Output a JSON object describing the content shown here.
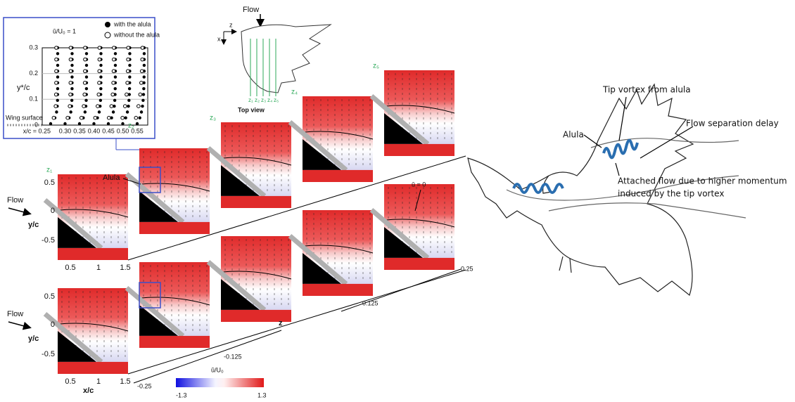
{
  "inset": {
    "scale_label": "ū/U₀ = 1",
    "legend": [
      "with the alula",
      "without the alula"
    ],
    "y_label": "y*/c",
    "yticks": [
      "0",
      "0.1",
      "0.2",
      "0.3"
    ],
    "surface_label": "Wing surface",
    "x_labels": [
      "x/c = 0.25",
      "0.30",
      "0.35",
      "0.40",
      "0.45",
      "0.50",
      "0.55"
    ]
  },
  "top_view": {
    "flow_label": "Flow",
    "axis_z": "z",
    "axis_x": "x",
    "stations": [
      "z₁",
      "z₂",
      "z₃",
      "z₄",
      "z₅"
    ],
    "caption": "Top view"
  },
  "panels": {
    "station_labels": [
      "z₁",
      "z₂",
      "z₃",
      "z₄",
      "z₅"
    ],
    "alula_label": "Alula",
    "zero_line_label": "ū = 0",
    "rows": [
      {
        "flow_label": "Flow",
        "y_label": "y/c",
        "yticks": [
          "0.5",
          "0",
          "-0.5"
        ],
        "xticks": [
          "0.5",
          "1",
          "1.5"
        ]
      },
      {
        "flow_label": "Flow",
        "y_label": "y/c",
        "yticks": [
          "0.5",
          "0",
          "-0.5"
        ],
        "xticks": [
          "0.5",
          "1",
          "1.5"
        ],
        "x_label": "x/c"
      }
    ],
    "z_axis": {
      "label": "z",
      "upper_ticks": [
        "0.125",
        "0.25"
      ],
      "lower_ticks": [
        "-0.25",
        "-0.125"
      ]
    }
  },
  "colorbar": {
    "label": "ū/U₀",
    "min_label": "-1.3",
    "max_label": "1.3"
  },
  "bird": {
    "tip_vortex": "Tip vortex from alula",
    "separation": "Flow separation delay",
    "alula": "Alula",
    "attached_flow": [
      "Attached flow due to higher momentum",
      "induced by the tip vortex"
    ]
  }
}
